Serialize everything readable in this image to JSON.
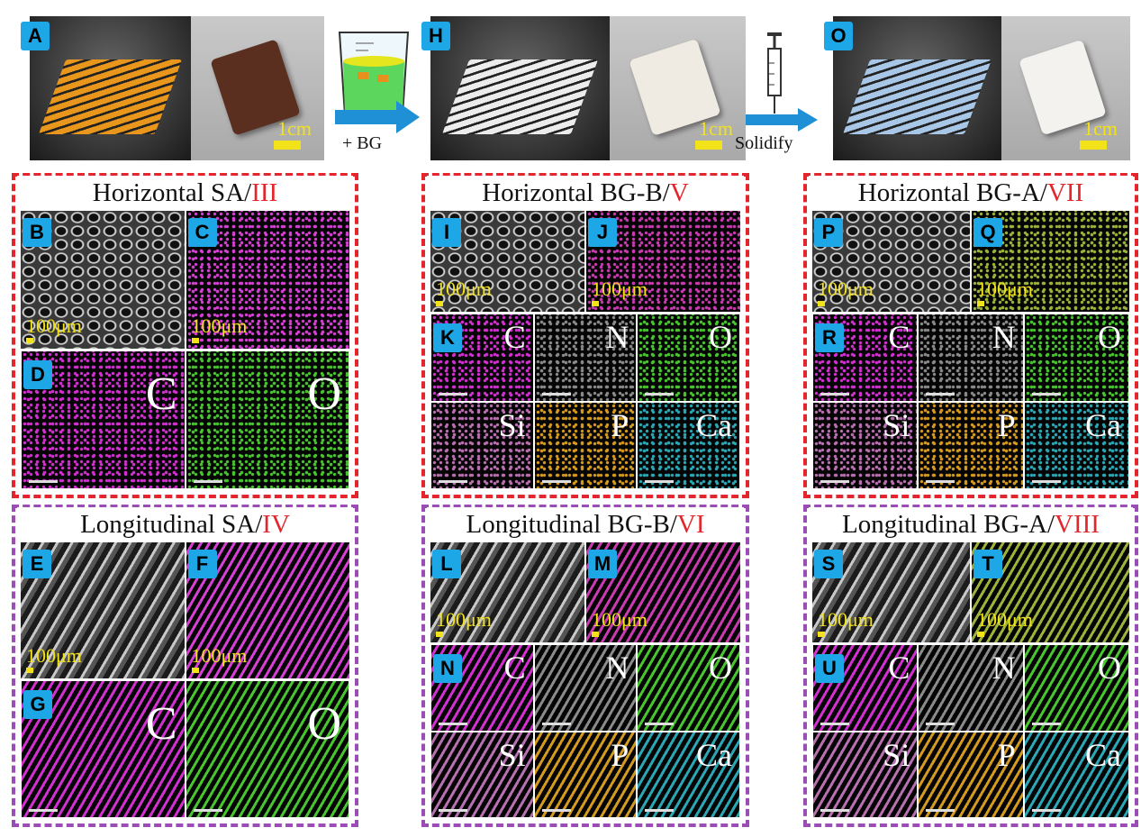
{
  "top": {
    "panels": [
      {
        "letter": "A",
        "scale": "1cm"
      },
      {
        "letter": "H",
        "scale": "1cm"
      },
      {
        "letter": "O",
        "scale": "1cm"
      }
    ],
    "arrows": [
      "+ BG",
      "Solidify"
    ]
  },
  "groups": [
    {
      "title": "Horizontal SA/",
      "numeral": "III",
      "images": [
        {
          "letter": "B",
          "scale": "100μm"
        },
        {
          "letter": "C",
          "scale": "100μm"
        }
      ],
      "maps": {
        "letter": "D",
        "elements": [
          "C",
          "O"
        ]
      }
    },
    {
      "title": "Horizontal BG-B/",
      "numeral": "V",
      "images": [
        {
          "letter": "I",
          "scale": "100μm"
        },
        {
          "letter": "J",
          "scale": "100μm"
        }
      ],
      "maps": {
        "letter": "K",
        "elements": [
          "C",
          "N",
          "O",
          "Si",
          "P",
          "Ca"
        ]
      }
    },
    {
      "title": "Horizontal BG-A/",
      "numeral": "VII",
      "images": [
        {
          "letter": "P",
          "scale": "100μm"
        },
        {
          "letter": "Q",
          "scale": "100μm"
        }
      ],
      "maps": {
        "letter": "R",
        "elements": [
          "C",
          "N",
          "O",
          "Si",
          "P",
          "Ca"
        ]
      }
    },
    {
      "title": "Longitudinal SA/",
      "numeral": "IV",
      "images": [
        {
          "letter": "E",
          "scale": "100μm"
        },
        {
          "letter": "F",
          "scale": "100μm"
        }
      ],
      "maps": {
        "letter": "G",
        "elements": [
          "C",
          "O"
        ]
      }
    },
    {
      "title": "Longitudinal BG-B/",
      "numeral": "VI",
      "images": [
        {
          "letter": "L",
          "scale": "100μm"
        },
        {
          "letter": "M",
          "scale": "100μm"
        }
      ],
      "maps": {
        "letter": "N",
        "elements": [
          "C",
          "N",
          "O",
          "Si",
          "P",
          "Ca"
        ]
      }
    },
    {
      "title": "Longitudinal BG-A/",
      "numeral": "VIII",
      "images": [
        {
          "letter": "S",
          "scale": "100μm"
        },
        {
          "letter": "T",
          "scale": "100μm"
        }
      ],
      "maps": {
        "letter": "U",
        "elements": [
          "C",
          "N",
          "O",
          "Si",
          "P",
          "Ca"
        ]
      }
    }
  ]
}
